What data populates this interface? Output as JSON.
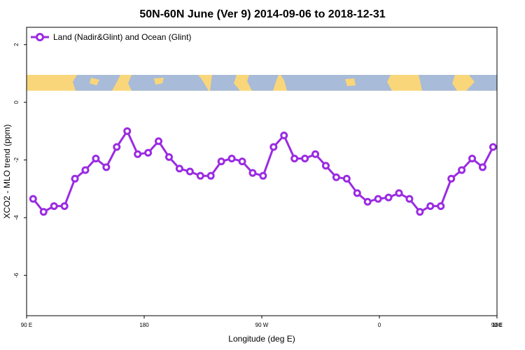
{
  "chart_data": {
    "type": "line",
    "title": "50N-60N June (Ver 9)   2014-09-06 to 2018-12-31",
    "xlabel": "Longitude (deg E)",
    "ylabel": "XCO2 - MLO trend (ppm)",
    "x_tick_labels": [
      "90 E",
      "180",
      "90 W",
      "0",
      "90 E",
      "180"
    ],
    "y_tick_labels": [
      "2",
      "0",
      "-2",
      "-4",
      "-6"
    ],
    "ylim": [
      -7.4,
      2.6
    ],
    "x_range_deg_east": [
      90,
      450
    ],
    "grid": false,
    "legend_position": "top-left",
    "series": [
      {
        "name": "Land (Nadir&Glint) and Ocean (Glint)",
        "color": "#9a2be2",
        "x": [
          95,
          103,
          111,
          119,
          127,
          135,
          143,
          151,
          159,
          167,
          175,
          183,
          191,
          199,
          207,
          215,
          223,
          231,
          239,
          247,
          255,
          263,
          271,
          279,
          287,
          295,
          303,
          311,
          319,
          327,
          335,
          343,
          351,
          359,
          367,
          375,
          383,
          391,
          399,
          407,
          415,
          423,
          431,
          439,
          447
        ],
        "values": [
          -3.35,
          -3.8,
          -3.6,
          -3.6,
          -2.65,
          -2.35,
          -1.95,
          -2.25,
          -1.55,
          -1.0,
          -1.8,
          -1.75,
          -1.35,
          -1.9,
          -2.3,
          -2.4,
          -2.55,
          -2.55,
          -2.05,
          -1.95,
          -2.05,
          -2.45,
          -2.55,
          -1.55,
          -1.15,
          -1.95,
          -1.95,
          -1.8,
          -2.2,
          -2.6,
          -2.65,
          -3.15,
          -3.45,
          -3.35,
          -3.3,
          -3.15,
          -3.35,
          -3.8,
          -3.6,
          -3.6,
          -2.65,
          -2.35,
          -1.95,
          -2.25,
          -1.55
        ]
      }
    ],
    "map_band": {
      "ocean_color": "#a8bbd8",
      "land_color": "#f9d67a",
      "y_range": [
        0.4,
        0.95
      ]
    },
    "frame_color": "#000000"
  }
}
